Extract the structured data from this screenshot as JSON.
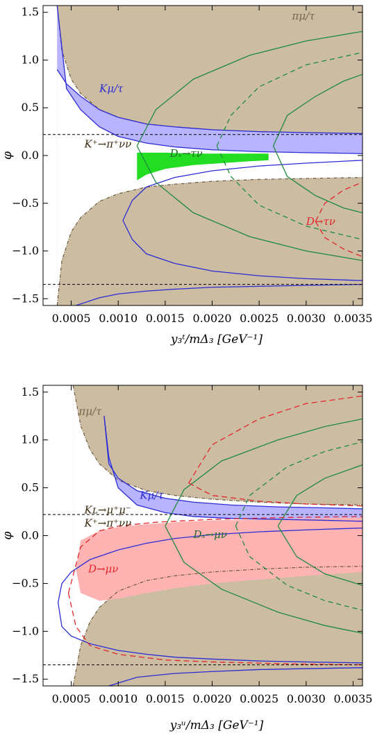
{
  "chart_data": [
    {
      "type": "area",
      "panel": "top",
      "xlabel": "y₃ᵗ/mΔ₃ [GeV⁻¹]",
      "ylabel": "φ",
      "xlim": [
        0.0002,
        0.0036
      ],
      "ylim": [
        -1.5708,
        1.5708
      ],
      "xticks": [
        0.0005,
        0.001,
        0.0015,
        0.002,
        0.0025,
        0.003,
        0.0035
      ],
      "xtick_labels": [
        "0.0005",
        "0.0010",
        "0.0015",
        "0.0020",
        "0.0025",
        "0.0030",
        "0.0035"
      ],
      "yticks": [
        -1.5,
        -1.0,
        -0.5,
        0.0,
        0.5,
        1.0,
        1.5
      ],
      "ytick_labels": [
        "−1.5",
        "−1.0",
        "−0.5",
        "0.0",
        "0.5",
        "1.0",
        "1.5"
      ],
      "colors": {
        "excluded": "#cbbca2",
        "kaon": "#b9b4ff",
        "ds": "#22dd22",
        "d": "#ffb3b3",
        "blue": "#2b2bd6",
        "green": "#1f8a3c",
        "red": "#e3262a"
      },
      "annotations": [
        {
          "text": "πμ/τ",
          "x": 0.00285,
          "y": 1.46
        },
        {
          "text": "Kμ/τ",
          "x": 0.0008,
          "y": 0.7
        },
        {
          "text": "K⁺→π⁺νν",
          "x": 0.00064,
          "y": 0.12
        },
        {
          "text": "Dₛ→τν",
          "x": 0.00155,
          "y": 0.02
        },
        {
          "text": "D→τν",
          "x": 0.003,
          "y": -0.69
        }
      ],
      "hlines": [
        0.22,
        -1.35
      ],
      "pion_boundary": {
        "x": [
          0.00035,
          0.0004,
          0.0005,
          0.0006,
          0.0008,
          0.001,
          0.0013,
          0.0016,
          0.002,
          0.0025,
          0.003,
          0.0036
        ],
        "y_upper": [
          1.5708,
          1.1,
          0.8,
          0.65,
          0.48,
          0.4,
          0.33,
          0.3,
          0.27,
          0.25,
          0.24,
          0.23
        ],
        "y_lower": [
          -1.5708,
          -1.1,
          -0.8,
          -0.65,
          -0.48,
          -0.4,
          -0.33,
          -0.3,
          -0.27,
          -0.25,
          -0.24,
          -0.23
        ]
      },
      "kaon_band": {
        "x": [
          0.00035,
          0.00045,
          0.0006,
          0.0008,
          0.001,
          0.0013,
          0.0016,
          0.002,
          0.0025,
          0.003,
          0.0036
        ],
        "y_upper": [
          0.9,
          0.75,
          0.62,
          0.48,
          0.4,
          0.33,
          0.3,
          0.27,
          0.25,
          0.24,
          0.23
        ],
        "y_lower": [
          1.5708,
          0.7,
          0.48,
          0.3,
          0.2,
          0.13,
          0.09,
          0.06,
          0.04,
          0.03,
          0.02
        ]
      },
      "ds_region": {
        "x": [
          0.0012,
          0.0013,
          0.0015,
          0.0018,
          0.0021,
          0.0024,
          0.0026
        ],
        "y_upper": [
          0.03,
          0.03,
          0.03,
          0.02,
          0.02,
          0.02,
          0.02
        ],
        "y_lower": [
          -0.26,
          -0.2,
          -0.14,
          -0.1,
          -0.08,
          -0.06,
          -0.05
        ]
      },
      "blue_lower": {
        "x": [
          0.00105,
          0.00115,
          0.0013,
          0.0016,
          0.002,
          0.0025,
          0.003,
          0.0036
        ],
        "y_upper": [
          -0.68,
          -0.47,
          -0.33,
          -0.23,
          -0.16,
          -0.11,
          -0.08,
          -0.05
        ],
        "y_lower": [
          -0.68,
          -0.88,
          -1.03,
          -1.13,
          -1.21,
          -1.26,
          -1.29,
          -1.31
        ]
      },
      "blue_bottom": {
        "x": [
          0.00055,
          0.0008,
          0.001,
          0.0013,
          0.0016,
          0.002,
          0.0025,
          0.003,
          0.0036
        ],
        "y": [
          -1.5708,
          -1.49,
          -1.45,
          -1.42,
          -1.4,
          -1.38,
          -1.37,
          -1.36,
          -1.35
        ]
      },
      "green_solid": [
        {
          "vertex": 0.0012,
          "upper": [
            [
              0.0012,
              0.1
            ],
            [
              0.0014,
              0.48
            ],
            [
              0.0018,
              0.8
            ],
            [
              0.0024,
              1.05
            ],
            [
              0.003,
              1.2
            ],
            [
              0.0036,
              1.3
            ]
          ],
          "lower": [
            [
              0.0012,
              0.1
            ],
            [
              0.0014,
              -0.28
            ],
            [
              0.0018,
              -0.6
            ],
            [
              0.0024,
              -0.85
            ],
            [
              0.003,
              -1.0
            ],
            [
              0.0036,
              -1.1
            ]
          ]
        },
        {
          "vertex": 0.00265,
          "upper": [
            [
              0.00265,
              0.1
            ],
            [
              0.0028,
              0.42
            ],
            [
              0.0031,
              0.62
            ],
            [
              0.0034,
              0.78
            ],
            [
              0.0036,
              0.85
            ]
          ],
          "lower": [
            [
              0.00265,
              0.1
            ],
            [
              0.0028,
              -0.22
            ],
            [
              0.0031,
              -0.42
            ],
            [
              0.0034,
              -0.55
            ],
            [
              0.0036,
              -0.6
            ]
          ]
        }
      ],
      "green_dashed": [
        {
          "vertex": 0.00205,
          "upper": [
            [
              0.00205,
              0.1
            ],
            [
              0.0022,
              0.42
            ],
            [
              0.0025,
              0.72
            ],
            [
              0.003,
              0.95
            ],
            [
              0.0036,
              1.08
            ]
          ],
          "lower": [
            [
              0.00205,
              0.1
            ],
            [
              0.0022,
              -0.22
            ],
            [
              0.0025,
              -0.52
            ],
            [
              0.003,
              -0.74
            ],
            [
              0.0036,
              -0.88
            ]
          ]
        }
      ],
      "red_dashed": [
        {
          "vertex": 0.0031,
          "upper": [
            [
              0.0031,
              -0.69
            ],
            [
              0.0032,
              -0.5
            ],
            [
              0.0034,
              -0.36
            ],
            [
              0.0036,
              -0.28
            ]
          ],
          "lower": [
            [
              0.0031,
              -0.69
            ],
            [
              0.0032,
              -0.86
            ],
            [
              0.0034,
              -0.98
            ],
            [
              0.0036,
              -1.06
            ]
          ]
        }
      ]
    },
    {
      "type": "area",
      "panel": "bottom",
      "xlabel": "y₃ᵘ/mΔ₃ [GeV⁻¹]",
      "ylabel": "φ",
      "xlim": [
        0.0002,
        0.0036
      ],
      "ylim": [
        -1.5708,
        1.5708
      ],
      "xticks": [
        0.0005,
        0.001,
        0.0015,
        0.002,
        0.0025,
        0.003,
        0.0035
      ],
      "xtick_labels": [
        "0.0005",
        "0.0010",
        "0.0015",
        "0.0020",
        "0.0025",
        "0.0030",
        "0.0035"
      ],
      "yticks": [
        -1.5,
        -1.0,
        -0.5,
        0.0,
        0.5,
        1.0,
        1.5
      ],
      "ytick_labels": [
        "−1.5",
        "−1.0",
        "−0.5",
        "0.0",
        "0.5",
        "1.0",
        "1.5"
      ],
      "colors": {
        "excluded": "#cbbca2",
        "kaon": "#b9b4ff",
        "ds": "#22dd22",
        "d": "#ffb3b3",
        "blue": "#2b2bd6",
        "green": "#1f8a3c",
        "red": "#e3262a"
      },
      "annotations": [
        {
          "text": "πμ/τ",
          "x": 0.00058,
          "y": 1.3
        },
        {
          "text": "Kμ/τ",
          "x": 0.00123,
          "y": 0.42
        },
        {
          "text": "Kʟ→μ⁺μ⁻",
          "x": 0.00064,
          "y": 0.27
        },
        {
          "text": "K⁺→π⁺νν",
          "x": 0.00064,
          "y": 0.13
        },
        {
          "text": "Dₛ→μν",
          "x": 0.0018,
          "y": 0.01
        },
        {
          "text": "D→μν",
          "x": 0.00068,
          "y": -0.35
        }
      ],
      "hlines": [
        0.22,
        -1.35
      ],
      "pion_boundary": {
        "x": [
          0.00052,
          0.0006,
          0.0007,
          0.0008,
          0.001,
          0.0013,
          0.0016,
          0.002,
          0.0025,
          0.003,
          0.0036
        ],
        "y_upper": [
          1.5708,
          1.15,
          0.9,
          0.75,
          0.58,
          0.47,
          0.42,
          0.38,
          0.35,
          0.33,
          0.32
        ],
        "y_lower": [
          -1.5708,
          -1.15,
          -0.9,
          -0.75,
          -0.58,
          -0.47,
          -0.42,
          -0.38,
          -0.35,
          -0.33,
          -0.32
        ]
      },
      "kaon_band": {
        "x": [
          0.00085,
          0.0009,
          0.001,
          0.0012,
          0.0015,
          0.0018,
          0.0022,
          0.0027,
          0.0032,
          0.0036
        ],
        "y_upper": [
          1.25,
          0.75,
          0.6,
          0.47,
          0.39,
          0.35,
          0.32,
          0.3,
          0.29,
          0.28
        ],
        "y_lower": [
          1.25,
          0.82,
          0.5,
          0.32,
          0.24,
          0.2,
          0.18,
          0.17,
          0.16,
          0.15
        ]
      },
      "d_band": {
        "x": [
          0.00055,
          0.0006,
          0.0008,
          0.001,
          0.0013,
          0.0016,
          0.002,
          0.0025,
          0.003,
          0.0036
        ],
        "y_upper": [
          -0.35,
          -0.05,
          0.05,
          0.09,
          0.12,
          0.14,
          0.16,
          0.17,
          0.18,
          0.19
        ],
        "y_lower": [
          -0.35,
          -0.6,
          -0.68,
          -0.66,
          -0.6,
          -0.55,
          -0.5,
          -0.46,
          -0.42,
          -0.38
        ]
      },
      "blue_curve": {
        "x": [
          0.00036,
          0.0004,
          0.0005,
          0.0007,
          0.001,
          0.0013,
          0.0016,
          0.002,
          0.0025,
          0.003,
          0.0036
        ],
        "y_upper": [
          -0.7,
          -0.5,
          -0.38,
          -0.25,
          -0.15,
          -0.08,
          -0.03,
          0.01,
          0.04,
          0.06,
          0.08
        ],
        "y_lower": [
          -0.7,
          -0.95,
          -1.05,
          -1.13,
          -1.2,
          -1.24,
          -1.27,
          -1.29,
          -1.31,
          -1.32,
          -1.33
        ]
      },
      "blue_bottom": {
        "x": [
          0.0009,
          0.0012,
          0.0016,
          0.002,
          0.0025,
          0.003,
          0.0036
        ],
        "y": [
          -1.5708,
          -1.48,
          -1.44,
          -1.42,
          -1.4,
          -1.39,
          -1.38
        ]
      },
      "green_solid": [
        {
          "vertex": 0.0015,
          "upper": [
            [
              0.0015,
              0.1
            ],
            [
              0.0017,
              0.48
            ],
            [
              0.0021,
              0.78
            ],
            [
              0.0027,
              1.0
            ],
            [
              0.0032,
              1.14
            ],
            [
              0.0036,
              1.22
            ]
          ],
          "lower": [
            [
              0.0015,
              0.1
            ],
            [
              0.0017,
              -0.28
            ],
            [
              0.0021,
              -0.56
            ],
            [
              0.0027,
              -0.8
            ],
            [
              0.0032,
              -0.94
            ],
            [
              0.0036,
              -1.02
            ]
          ]
        },
        {
          "vertex": 0.0027,
          "upper": [
            [
              0.0027,
              0.1
            ],
            [
              0.0029,
              0.42
            ],
            [
              0.0032,
              0.6
            ],
            [
              0.0036,
              0.74
            ]
          ],
          "lower": [
            [
              0.0027,
              0.1
            ],
            [
              0.0029,
              -0.22
            ],
            [
              0.0032,
              -0.4
            ],
            [
              0.0036,
              -0.52
            ]
          ]
        }
      ],
      "green_dashed": [
        {
          "vertex": 0.00225,
          "upper": [
            [
              0.00225,
              0.1
            ],
            [
              0.0024,
              0.42
            ],
            [
              0.0028,
              0.72
            ],
            [
              0.0032,
              0.88
            ],
            [
              0.0036,
              0.98
            ]
          ],
          "lower": [
            [
              0.00225,
              0.1
            ],
            [
              0.0024,
              -0.22
            ],
            [
              0.0028,
              -0.52
            ],
            [
              0.0032,
              -0.68
            ],
            [
              0.0036,
              -0.78
            ]
          ]
        }
      ],
      "red_dashed": [
        {
          "vertex": 0.00047,
          "upper": [
            [
              0.00047,
              -0.6
            ],
            [
              0.0006,
              -0.12
            ],
            [
              0.0008,
              0.05
            ],
            [
              0.001,
              0.1
            ],
            [
              0.0014,
              0.14
            ],
            [
              0.002,
              0.17
            ],
            [
              0.0028,
              0.19
            ],
            [
              0.0036,
              0.2
            ]
          ],
          "lower": [
            [
              0.00047,
              -0.6
            ],
            [
              0.00055,
              -0.95
            ],
            [
              0.0007,
              -1.15
            ],
            [
              0.001,
              -1.24
            ],
            [
              0.0015,
              -1.3
            ],
            [
              0.002,
              -1.32
            ],
            [
              0.0028,
              -1.34
            ],
            [
              0.0036,
              -1.35
            ]
          ]
        },
        {
          "vertex": 0.00175,
          "upper": [
            [
              0.00175,
              0.55
            ],
            [
              0.002,
              0.95
            ],
            [
              0.0025,
              1.22
            ],
            [
              0.003,
              1.38
            ],
            [
              0.0036,
              1.46
            ]
          ],
          "lower": [
            [
              0.00175,
              0.55
            ],
            [
              0.002,
              0.42
            ],
            [
              0.0025,
              0.36
            ],
            [
              0.003,
              0.33
            ],
            [
              0.0036,
              0.31
            ]
          ]
        }
      ]
    }
  ]
}
